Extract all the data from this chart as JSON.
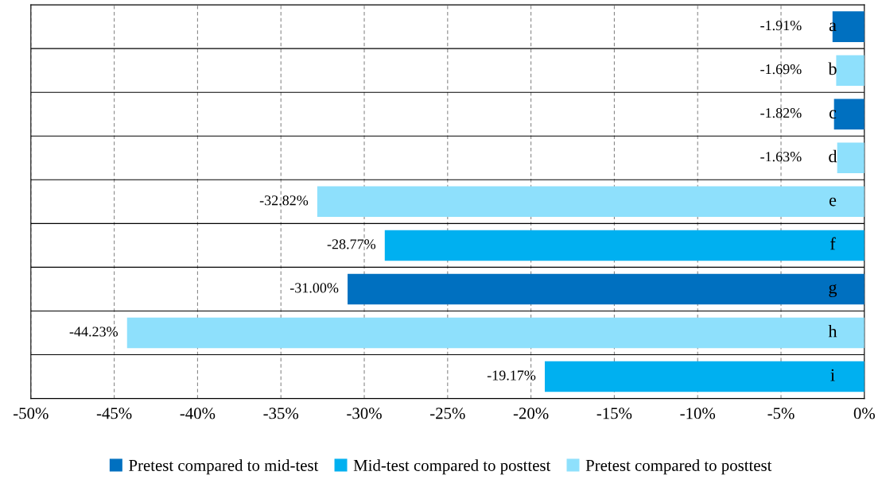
{
  "chart_data": {
    "type": "bar",
    "orientation": "horizontal",
    "categories": [
      "a",
      "b",
      "c",
      "d",
      "e",
      "f",
      "g",
      "h",
      "i"
    ],
    "series": [
      {
        "name": "Pretest compared to mid-test",
        "color": "#0070c0",
        "values": [
          -1.91,
          null,
          -1.82,
          null,
          null,
          null,
          -31.0,
          null,
          null
        ],
        "value_labels": [
          "-1.91%",
          null,
          "-1.82%",
          null,
          null,
          null,
          "-31.00%",
          null,
          null
        ]
      },
      {
        "name": "Mid-test compared to posttest",
        "color": "#00b0f0",
        "values": [
          null,
          null,
          null,
          null,
          null,
          -28.77,
          null,
          null,
          -19.17
        ],
        "value_labels": [
          null,
          null,
          null,
          null,
          null,
          "-28.77%",
          null,
          null,
          "-19.17%"
        ]
      },
      {
        "name": "Pretest compared to posttest",
        "color": "#8ee0fc",
        "values": [
          null,
          -1.69,
          null,
          -1.63,
          -32.82,
          null,
          null,
          -44.23,
          null
        ],
        "value_labels": [
          null,
          "-1.69%",
          null,
          "-1.63%",
          "-32.82%",
          null,
          null,
          "-44.23%",
          null
        ]
      }
    ],
    "xlim": [
      -50,
      0
    ],
    "xticks": [
      {
        "value": -50,
        "label": "-50%"
      },
      {
        "value": -45,
        "label": "-45%"
      },
      {
        "value": -40,
        "label": "-40%"
      },
      {
        "value": -35,
        "label": "-35%"
      },
      {
        "value": -30,
        "label": "-30%"
      },
      {
        "value": -25,
        "label": "-25%"
      },
      {
        "value": -20,
        "label": "-20%"
      },
      {
        "value": -15,
        "label": "-15%"
      },
      {
        "value": -10,
        "label": "-10%"
      },
      {
        "value": -5,
        "label": "-5%"
      },
      {
        "value": 0,
        "label": "0%"
      }
    ],
    "grid": true,
    "legend": "bottom"
  }
}
